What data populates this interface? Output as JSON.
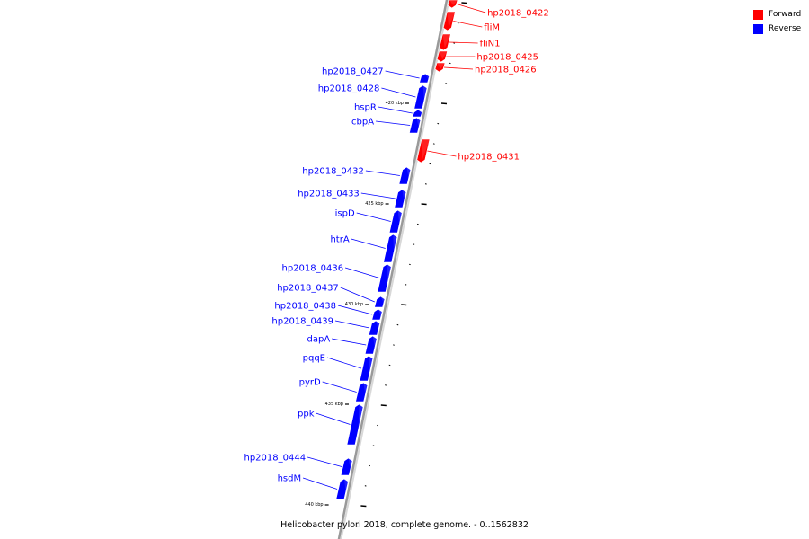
{
  "caption": "Helicobacter pylori 2018, complete genome. - 0..1562832",
  "legend": [
    {
      "label": "Forward",
      "color": "#ff0000"
    },
    {
      "label": "Reverse",
      "color": "#0000ff"
    }
  ],
  "colors": {
    "forward": "#ff0000",
    "reverse": "#0000ff",
    "backbone": "#999999"
  },
  "ticks": [
    "420 kbp",
    "425 kbp",
    "430 kbp",
    "435 kbp",
    "440 kbp"
  ],
  "genes": [
    {
      "name": "hp2018_0422",
      "strand": "forward"
    },
    {
      "name": "fliM",
      "strand": "forward"
    },
    {
      "name": "fliN1",
      "strand": "forward"
    },
    {
      "name": "hp2018_0425",
      "strand": "forward"
    },
    {
      "name": "hp2018_0426",
      "strand": "forward"
    },
    {
      "name": "hp2018_0427",
      "strand": "reverse"
    },
    {
      "name": "hp2018_0428",
      "strand": "reverse"
    },
    {
      "name": "hspR",
      "strand": "reverse"
    },
    {
      "name": "cbpA",
      "strand": "reverse"
    },
    {
      "name": "hp2018_0431",
      "strand": "forward"
    },
    {
      "name": "hp2018_0432",
      "strand": "reverse"
    },
    {
      "name": "hp2018_0433",
      "strand": "reverse"
    },
    {
      "name": "ispD",
      "strand": "reverse"
    },
    {
      "name": "htrA",
      "strand": "reverse"
    },
    {
      "name": "hp2018_0436",
      "strand": "reverse"
    },
    {
      "name": "hp2018_0437",
      "strand": "reverse"
    },
    {
      "name": "hp2018_0438",
      "strand": "reverse"
    },
    {
      "name": "hp2018_0439",
      "strand": "reverse"
    },
    {
      "name": "dapA",
      "strand": "reverse"
    },
    {
      "name": "pqqE",
      "strand": "reverse"
    },
    {
      "name": "pyrD",
      "strand": "reverse"
    },
    {
      "name": "ppk",
      "strand": "reverse"
    },
    {
      "name": "hp2018_0444",
      "strand": "reverse"
    },
    {
      "name": "hsdM",
      "strand": "reverse"
    }
  ]
}
